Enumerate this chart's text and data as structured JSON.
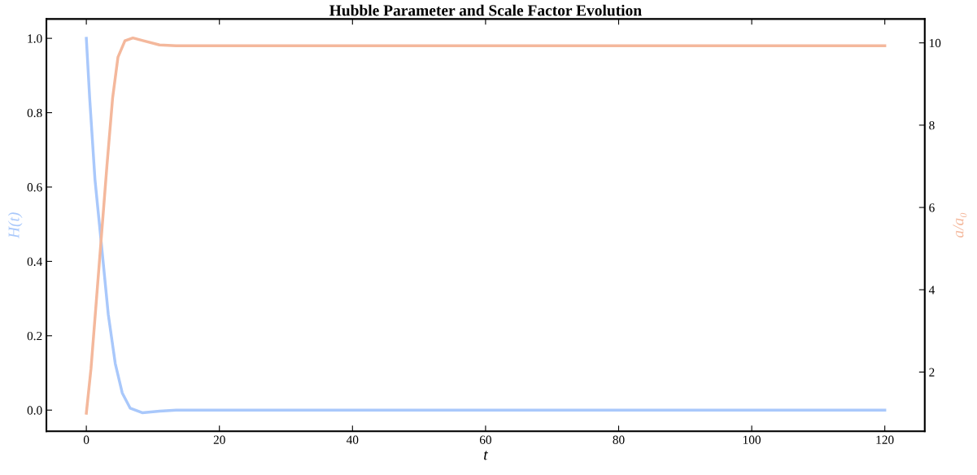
{
  "chart_data": {
    "type": "line",
    "title": "Hubble Parameter and Scale Factor Evolution",
    "xlabel": "t",
    "ylabel": "H(t)",
    "y2label": "a/a₀",
    "xlim": [
      -6,
      126
    ],
    "xticks": [
      0,
      20,
      40,
      60,
      80,
      100,
      120
    ],
    "ylim": [
      -0.057,
      1.052
    ],
    "yticks": [
      {
        "value": 0,
        "label": "0.0"
      },
      0.2,
      0.4,
      0.6,
      0.8,
      {
        "value": 1,
        "label": "1.0"
      }
    ],
    "y2lim": [
      0.56,
      10.58
    ],
    "y2ticks": [
      2,
      4,
      6,
      8,
      10
    ],
    "grid": false,
    "line_style": "solid",
    "marker": "none",
    "series": [
      {
        "color": "#a9c8fb",
        "x": [
          0,
          0.5,
          1.3,
          2.3,
          3.3,
          4.35,
          5.4,
          6.6,
          8.4,
          11,
          13.5,
          30,
          60,
          90,
          120
        ],
        "values": [
          1.0,
          0.84,
          0.62,
          0.44,
          0.257,
          0.125,
          0.046,
          0.005,
          -0.007,
          -0.003,
          0,
          0,
          0,
          0,
          0
        ]
      },
      {
        "color": "#f4b89c",
        "axis": "y2",
        "x": [
          0,
          0.7,
          1.5,
          2.3,
          3.1,
          3.95,
          4.75,
          5.8,
          7.0,
          8.6,
          11,
          13.5,
          30,
          60,
          90,
          120
        ],
        "values": [
          1.0,
          2.08,
          3.72,
          5.37,
          7.02,
          8.66,
          9.65,
          10.05,
          10.12,
          10.05,
          9.95,
          9.93,
          9.93,
          9.93,
          9.93,
          9.93
        ]
      }
    ]
  }
}
